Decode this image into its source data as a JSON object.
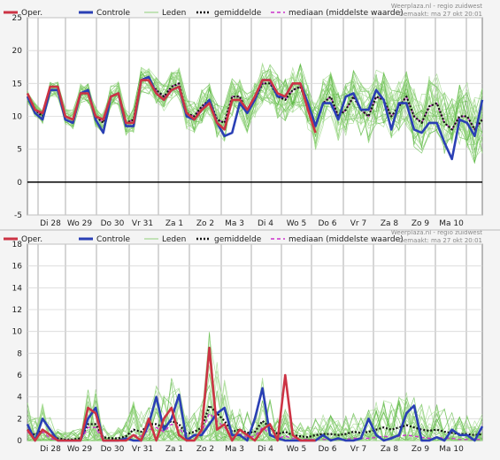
{
  "source_line": "Weerplaza.nl - regio zuidwest",
  "made_line": "Gemaakt: ma 27 okt 20:01",
  "legend": [
    {
      "key": "oper",
      "label": "Oper.",
      "color": "#cc3344",
      "style": "solid"
    },
    {
      "key": "controle",
      "label": "Controle",
      "color": "#2a3fb5",
      "style": "solid"
    },
    {
      "key": "leden",
      "label": "Leden",
      "color": "#8fd17a",
      "style": "thin"
    },
    {
      "key": "gem",
      "label": "gemiddelde",
      "color": "#111111",
      "style": "dotted"
    },
    {
      "key": "med",
      "label": "mediaan (middelste waarde)",
      "color": "#cc33cc",
      "style": "dashed"
    }
  ],
  "chart_data": [
    {
      "type": "line",
      "x_unit": "hours from mon 27 oct 18:00 (6-hourly steps)",
      "x": [
        0,
        6,
        12,
        18,
        24,
        30,
        36,
        42,
        48,
        54,
        60,
        66,
        72,
        78,
        84,
        90,
        96,
        102,
        108,
        114,
        120,
        126,
        132,
        138,
        144,
        150,
        156,
        162,
        168,
        174,
        180,
        186,
        192,
        198,
        204,
        210,
        216,
        222,
        228,
        234,
        240,
        246,
        252,
        258,
        264,
        270,
        276,
        282,
        288,
        294,
        300,
        306,
        312,
        318,
        324,
        330,
        336,
        342,
        348,
        354,
        360
      ],
      "x_tick_labels": [
        "Di 28",
        "Wo 29",
        "Do 30",
        "Vr 31",
        "Za 1",
        "Zo 2",
        "Ma 3",
        "Di 4",
        "Wo 5",
        "Do 6",
        "Vr 7",
        "Za 8",
        "Zo 9",
        "Ma 10"
      ],
      "ylim": [
        -5,
        25
      ],
      "yticks": [
        -5,
        0,
        5,
        10,
        15,
        20,
        25
      ],
      "grid": true,
      "series": [
        {
          "key": "oper",
          "name": "Oper.",
          "values": [
            13.5,
            11,
            10.5,
            14.5,
            14.5,
            10,
            9.5,
            13.5,
            13.5,
            10,
            9.5,
            13,
            13.5,
            9,
            9,
            15.5,
            15.5,
            13.5,
            12.5,
            14,
            14.5,
            10.5,
            9.5,
            11,
            12,
            9,
            8,
            12.5,
            12.5,
            11,
            13,
            15.5,
            15.5,
            13.5,
            13,
            15,
            15,
            11,
            7.5,
            null,
            null,
            null,
            null,
            null,
            null,
            null,
            null,
            null,
            null,
            null,
            null,
            null,
            null,
            null,
            null,
            null,
            null,
            null,
            null,
            null,
            null
          ]
        },
        {
          "key": "controle",
          "name": "Controle",
          "values": [
            13,
            10.5,
            9.5,
            14,
            14,
            9.5,
            9,
            13.5,
            14,
            9.5,
            7.5,
            13,
            13.5,
            8.5,
            8.5,
            15.5,
            16,
            13.5,
            12.5,
            14,
            14.5,
            10,
            9.5,
            11,
            12.5,
            9,
            7,
            7.5,
            12,
            10.5,
            12.5,
            15.5,
            15.5,
            13,
            13,
            15,
            15,
            12,
            8.5,
            12,
            12,
            9.5,
            13,
            13.5,
            11,
            11,
            14,
            12.5,
            8,
            12,
            12,
            8,
            7.5,
            9,
            9,
            6,
            3.5,
            9.5,
            9,
            7,
            12.5
          ]
        },
        {
          "key": "gem",
          "name": "gemiddelde",
          "values": [
            13,
            11,
            10,
            14,
            14,
            10,
            9.5,
            13.5,
            13.5,
            10,
            9,
            13,
            13.5,
            9,
            9.5,
            15.5,
            15.5,
            14,
            13,
            14.5,
            15,
            10.5,
            10,
            11.5,
            12.5,
            9.5,
            9,
            13,
            13,
            10.5,
            12.5,
            15,
            15,
            13,
            12.5,
            14,
            14.5,
            11.5,
            8.5,
            12,
            13,
            10,
            11,
            13,
            11,
            10,
            13,
            12.5,
            10,
            11.5,
            13,
            10,
            9,
            11.5,
            12,
            9,
            8,
            10,
            10,
            8,
            9.5
          ]
        },
        {
          "key": "med",
          "name": "mediaan (middelste waarde)",
          "values": [
            13,
            11,
            10,
            14,
            14,
            10,
            9.5,
            13.5,
            13.5,
            10,
            9,
            13,
            13.5,
            9,
            9.5,
            15.5,
            15.5,
            14,
            13,
            14.5,
            15,
            10.5,
            10,
            11.5,
            12.5,
            9.5,
            9,
            13,
            13,
            10.5,
            12.5,
            15,
            15,
            13,
            12.5,
            14,
            14.5,
            11.5,
            8.5,
            12,
            13,
            10,
            11,
            13,
            11,
            10,
            13,
            12.5,
            10,
            11.5,
            13,
            10,
            9,
            11.5,
            12,
            9,
            8,
            10,
            10,
            8,
            9.5
          ]
        }
      ]
    },
    {
      "type": "line",
      "x_unit": "hours from mon 27 oct 18:00 (6-hourly steps)",
      "x": [
        0,
        6,
        12,
        18,
        24,
        30,
        36,
        42,
        48,
        54,
        60,
        66,
        72,
        78,
        84,
        90,
        96,
        102,
        108,
        114,
        120,
        126,
        132,
        138,
        144,
        150,
        156,
        162,
        168,
        174,
        180,
        186,
        192,
        198,
        204,
        210,
        216,
        222,
        228,
        234,
        240,
        246,
        252,
        258,
        264,
        270,
        276,
        282,
        288,
        294,
        300,
        306,
        312,
        318,
        324,
        330,
        336,
        342,
        348,
        354,
        360
      ],
      "x_tick_labels": [
        "Di 28",
        "Wo 29",
        "Do 30",
        "Vr 31",
        "Za 1",
        "Zo 2",
        "Ma 3",
        "Di 4",
        "Wo 5",
        "Do 6",
        "Vr 7",
        "Za 8",
        "Zo 9",
        "Ma 10"
      ],
      "ylim": [
        0,
        18
      ],
      "yticks": [
        0,
        2,
        4,
        6,
        8,
        10,
        12,
        14,
        16,
        18
      ],
      "grid": true,
      "series": [
        {
          "key": "oper",
          "name": "Oper.",
          "values": [
            1,
            0,
            1,
            0.5,
            0,
            0,
            0,
            0,
            3,
            2.5,
            0,
            0,
            0,
            0,
            0.5,
            0,
            2,
            0,
            2,
            3,
            0.5,
            0,
            0,
            1,
            8.5,
            1,
            1.5,
            0,
            1,
            0.5,
            0,
            1,
            1.5,
            0,
            6,
            0.5,
            0,
            0,
            0,
            null,
            null,
            null,
            null,
            null,
            null,
            null,
            null,
            null,
            null,
            null,
            null,
            null,
            null,
            null,
            null,
            null,
            null,
            null,
            null,
            null,
            null
          ]
        },
        {
          "key": "controle",
          "name": "Controle",
          "values": [
            1.5,
            0,
            2,
            1,
            0,
            0,
            0,
            0,
            2,
            3,
            0,
            0,
            0,
            0.2,
            0,
            0,
            1.5,
            4,
            1,
            2,
            4.2,
            0,
            0.5,
            0.5,
            1.5,
            2.5,
            3,
            0.5,
            0.5,
            0,
            2,
            4.8,
            0.5,
            0.2,
            0,
            0,
            0,
            0,
            0,
            0.5,
            0,
            0.2,
            0,
            0,
            0.2,
            2,
            0.5,
            0,
            0.2,
            0.5,
            2.5,
            3.2,
            0,
            0,
            0.3,
            0,
            1,
            0.5,
            0.5,
            0,
            1.3
          ]
        },
        {
          "key": "gem",
          "name": "gemiddelde",
          "values": [
            1,
            0.5,
            1,
            0.5,
            0.2,
            0.1,
            0.1,
            0.2,
            1.5,
            1.5,
            0.3,
            0.2,
            0.2,
            0.4,
            1,
            0.8,
            1.5,
            1.5,
            1.2,
            1.8,
            1.5,
            0.6,
            0.8,
            1.2,
            3.2,
            2.5,
            1.8,
            0.8,
            1,
            0.7,
            0.8,
            1.8,
            1.2,
            0.6,
            0.8,
            0.5,
            0.4,
            0.3,
            0.5,
            0.6,
            0.6,
            0.5,
            0.6,
            0.8,
            0.7,
            0.8,
            1,
            1.2,
            1,
            1.2,
            1.4,
            1.2,
            1,
            0.9,
            1,
            0.8,
            0.7,
            0.6,
            0.6,
            0.5,
            0.6
          ]
        },
        {
          "key": "med",
          "name": "mediaan (middelste waarde)",
          "values": [
            0.8,
            0.2,
            0.8,
            0.2,
            0,
            0,
            0,
            0,
            1.2,
            1.2,
            0,
            0,
            0,
            0.1,
            0.5,
            0.4,
            1,
            1.2,
            0.8,
            1.5,
            1.2,
            0.2,
            0.4,
            0.8,
            2.5,
            1.8,
            1.2,
            0.4,
            0.6,
            0.3,
            0.4,
            1.2,
            0.6,
            0.2,
            0.4,
            0.2,
            0.1,
            0.1,
            0.1,
            0.1,
            0.1,
            0.1,
            0.1,
            0.2,
            0.2,
            0.2,
            0.3,
            0.4,
            0.3,
            0.4,
            0.5,
            0.4,
            0.3,
            0.2,
            0.3,
            0.2,
            0.2,
            0.1,
            0.1,
            0.1,
            0.1
          ]
        }
      ]
    }
  ]
}
